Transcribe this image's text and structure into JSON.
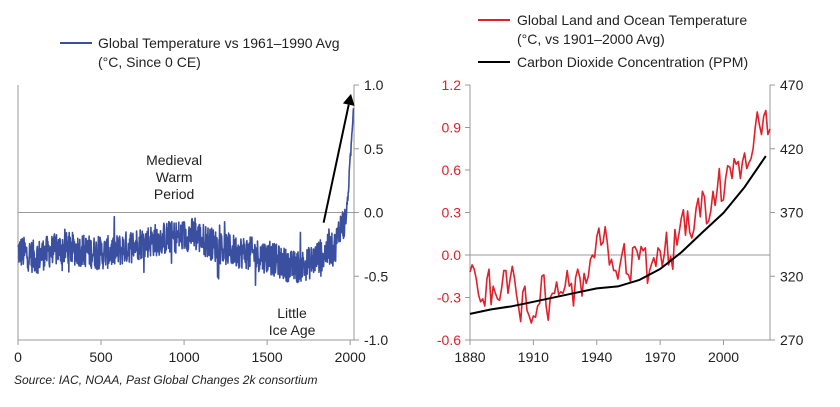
{
  "chart_data": [
    {
      "type": "line",
      "id": "left",
      "legend": [
        {
          "label_line1": "Global Temperature vs 1961–1990 Avg",
          "label_line2": "(°C, Since 0 CE)",
          "color": "#3a4fa0"
        }
      ],
      "xlabel": "",
      "ylabel": "",
      "xlim": [
        0,
        2023
      ],
      "ylim": [
        -1.0,
        1.0
      ],
      "x_ticks": [
        0,
        500,
        1000,
        1500,
        2000
      ],
      "y_ticks": [
        1.0,
        0.5,
        0.0,
        -0.5,
        -1.0
      ],
      "y_tick_labels": [
        "1.0",
        "0.5",
        "0.0",
        "-0.5",
        "-1.0"
      ],
      "zero_line": true,
      "series_color": "#3a4fa0",
      "anchors": [
        [
          0,
          -0.3
        ],
        [
          100,
          -0.35
        ],
        [
          200,
          -0.3
        ],
        [
          300,
          -0.28
        ],
        [
          400,
          -0.3
        ],
        [
          500,
          -0.32
        ],
        [
          600,
          -0.3
        ],
        [
          700,
          -0.25
        ],
        [
          800,
          -0.22
        ],
        [
          900,
          -0.2
        ],
        [
          1000,
          -0.18
        ],
        [
          1050,
          -0.17
        ],
        [
          1100,
          -0.2
        ],
        [
          1200,
          -0.27
        ],
        [
          1300,
          -0.3
        ],
        [
          1400,
          -0.32
        ],
        [
          1500,
          -0.35
        ],
        [
          1600,
          -0.4
        ],
        [
          1650,
          -0.43
        ],
        [
          1700,
          -0.42
        ],
        [
          1750,
          -0.4
        ],
        [
          1800,
          -0.35
        ],
        [
          1850,
          -0.32
        ],
        [
          1880,
          -0.28
        ],
        [
          1900,
          -0.3
        ],
        [
          1920,
          -0.22
        ],
        [
          1940,
          -0.1
        ],
        [
          1960,
          -0.1
        ],
        [
          1975,
          -0.05
        ],
        [
          1990,
          0.2
        ],
        [
          2000,
          0.4
        ],
        [
          2010,
          0.6
        ],
        [
          2020,
          0.85
        ]
      ],
      "annotations": [
        {
          "text_lines": [
            "Medieval",
            "Warm",
            "Period"
          ]
        },
        {
          "text_lines": [
            "Little",
            "Ice Age"
          ]
        }
      ],
      "arrow": {
        "from": [
          1840,
          -0.08
        ],
        "to": [
          2005,
          0.93
        ]
      }
    },
    {
      "type": "line",
      "id": "right",
      "legend": [
        {
          "label_line1": "Global Land and Ocean Temperature",
          "label_line2": "(°C, vs 1901–2000 Avg)",
          "color": "#e0202a"
        },
        {
          "label_line1": "Carbon Dioxide Concentration (PPM)",
          "label_line2": "",
          "color": "#000000"
        }
      ],
      "xlim": [
        1880,
        2022
      ],
      "x_ticks": [
        1880,
        1910,
        1940,
        1970,
        2000
      ],
      "y_left": {
        "ticks": [
          1.2,
          0.9,
          0.6,
          0.3,
          0.0,
          -0.3,
          -0.6
        ],
        "labels": [
          "1.2",
          "0.9",
          "0.6",
          "0.3",
          "0.0",
          "-0.3",
          "-0.6"
        ],
        "lim": [
          -0.6,
          1.2
        ],
        "color": "#e0202a"
      },
      "y_right": {
        "ticks": [
          470,
          420,
          370,
          320,
          270
        ],
        "labels": [
          "470",
          "420",
          "370",
          "320",
          "270"
        ],
        "lim": [
          270,
          470
        ]
      },
      "zero_line": true,
      "series": [
        {
          "name": "Global Land and Ocean Temperature",
          "axis": "left",
          "color": "#e0202a",
          "x": [
            1880,
            1881,
            1882,
            1883,
            1884,
            1885,
            1886,
            1887,
            1888,
            1889,
            1890,
            1891,
            1892,
            1893,
            1894,
            1895,
            1896,
            1897,
            1898,
            1899,
            1900,
            1901,
            1902,
            1903,
            1904,
            1905,
            1906,
            1907,
            1908,
            1909,
            1910,
            1911,
            1912,
            1913,
            1914,
            1915,
            1916,
            1917,
            1918,
            1919,
            1920,
            1921,
            1922,
            1923,
            1924,
            1925,
            1926,
            1927,
            1928,
            1929,
            1930,
            1931,
            1932,
            1933,
            1934,
            1935,
            1936,
            1937,
            1938,
            1939,
            1940,
            1941,
            1942,
            1943,
            1944,
            1945,
            1946,
            1947,
            1948,
            1949,
            1950,
            1951,
            1952,
            1953,
            1954,
            1955,
            1956,
            1957,
            1958,
            1959,
            1960,
            1961,
            1962,
            1963,
            1964,
            1965,
            1966,
            1967,
            1968,
            1969,
            1970,
            1971,
            1972,
            1973,
            1974,
            1975,
            1976,
            1977,
            1978,
            1979,
            1980,
            1981,
            1982,
            1983,
            1984,
            1985,
            1986,
            1987,
            1988,
            1989,
            1990,
            1991,
            1992,
            1993,
            1994,
            1995,
            1996,
            1997,
            1998,
            1999,
            2000,
            2001,
            2002,
            2003,
            2004,
            2005,
            2006,
            2007,
            2008,
            2009,
            2010,
            2011,
            2012,
            2013,
            2014,
            2015,
            2016,
            2017,
            2018,
            2019,
            2020,
            2021,
            2022
          ],
          "values": [
            -0.12,
            -0.07,
            -0.1,
            -0.17,
            -0.28,
            -0.33,
            -0.31,
            -0.36,
            -0.17,
            -0.1,
            -0.35,
            -0.22,
            -0.27,
            -0.31,
            -0.32,
            -0.23,
            -0.11,
            -0.11,
            -0.27,
            -0.17,
            -0.08,
            -0.16,
            -0.28,
            -0.37,
            -0.47,
            -0.26,
            -0.22,
            -0.39,
            -0.43,
            -0.48,
            -0.43,
            -0.44,
            -0.36,
            -0.34,
            -0.15,
            -0.14,
            -0.36,
            -0.46,
            -0.3,
            -0.27,
            -0.27,
            -0.19,
            -0.28,
            -0.26,
            -0.27,
            -0.22,
            -0.11,
            -0.22,
            -0.2,
            -0.36,
            -0.16,
            -0.1,
            -0.16,
            -0.29,
            -0.13,
            -0.2,
            -0.15,
            -0.03,
            -0.0,
            -0.02,
            0.13,
            0.19,
            0.07,
            0.09,
            0.2,
            0.09,
            -0.07,
            -0.03,
            -0.11,
            -0.11,
            -0.17,
            -0.07,
            0.01,
            0.08,
            -0.13,
            -0.14,
            -0.19,
            0.05,
            0.06,
            0.03,
            -0.03,
            0.06,
            0.03,
            0.05,
            -0.2,
            -0.11,
            -0.06,
            -0.02,
            -0.08,
            0.05,
            0.03,
            -0.08,
            0.01,
            0.16,
            -0.07,
            -0.01,
            -0.1,
            0.18,
            0.07,
            0.16,
            0.26,
            0.32,
            0.14,
            0.31,
            0.16,
            0.12,
            0.18,
            0.33,
            0.4,
            0.27,
            0.45,
            0.41,
            0.22,
            0.24,
            0.31,
            0.45,
            0.35,
            0.46,
            0.61,
            0.38,
            0.39,
            0.54,
            0.63,
            0.62,
            0.54,
            0.68,
            0.64,
            0.66,
            0.54,
            0.66,
            0.72,
            0.61,
            0.65,
            0.68,
            0.75,
            0.9,
            1.01,
            0.92,
            0.85,
            0.98,
            1.02,
            0.85,
            0.89
          ]
        },
        {
          "name": "Carbon Dioxide Concentration (PPM)",
          "axis": "right",
          "color": "#000000",
          "x": [
            1880,
            1890,
            1900,
            1910,
            1920,
            1930,
            1940,
            1950,
            1960,
            1970,
            1980,
            1990,
            2000,
            2010,
            2020
          ],
          "values": [
            290.5,
            294,
            296.5,
            300,
            303.5,
            307,
            310.5,
            312,
            317,
            325.7,
            338.7,
            354.4,
            369.7,
            389.9,
            414.2
          ]
        }
      ]
    }
  ],
  "source": "Source: IAC, NOAA, Past Global Changes 2k consortium"
}
